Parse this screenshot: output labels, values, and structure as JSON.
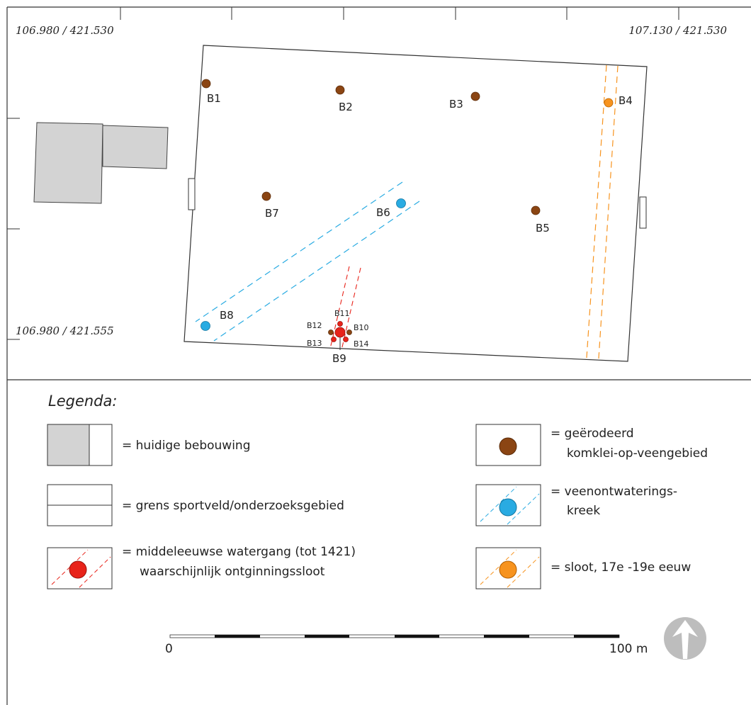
{
  "map": {
    "coordinates": {
      "top_left": "106.980 / 421.530",
      "top_right": "107.130 / 421.530",
      "bottom_left": "106.980 / 421.555"
    },
    "boreholes": {
      "B1": "B1",
      "B2": "B2",
      "B3": "B3",
      "B4": "B4",
      "B5": "B5",
      "B6": "B6",
      "B7": "B7",
      "B8": "B8",
      "B9": "B9",
      "B10": "B10",
      "B11": "B11",
      "B12": "B12",
      "B13": "B13",
      "B14": "B14"
    }
  },
  "legend": {
    "title": "Legenda:",
    "items": [
      {
        "lines": [
          "= huidige bebouwing"
        ]
      },
      {
        "lines": [
          "= grens sportveld/onderzoeksgebied"
        ]
      },
      {
        "lines": [
          "= middeleeuwse watergang (tot 1421)",
          "waarschijnlijk ontginningssloot"
        ]
      },
      {
        "lines": [
          "= geërodeerd",
          "komklei-op-veengebied"
        ]
      },
      {
        "lines": [
          "= veenontwaterings-",
          "kreek"
        ]
      },
      {
        "lines": [
          "= sloot, 17e -19e eeuw"
        ]
      }
    ]
  },
  "scale_bar": {
    "start_label": "0",
    "end_label": "100 m"
  },
  "colors": {
    "eroded_clay": "#8b4513",
    "peat_creek": "#29abe2",
    "medieval_watercourse": "#e8231a",
    "ditch_17_19": "#f7931e",
    "building": "#d3d3d3"
  },
  "north_arrow_icon": "north-arrow-icon"
}
